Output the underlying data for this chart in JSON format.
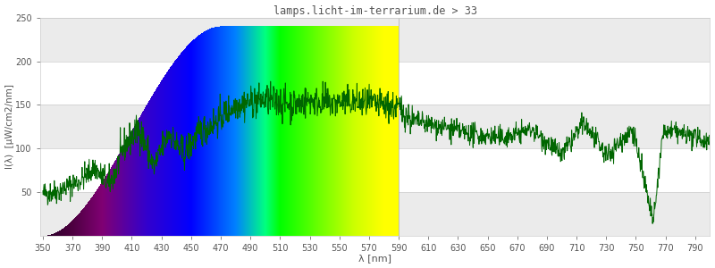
{
  "title": "lamps.licht-im-terrarium.de > 33",
  "xlabel": "λ [nm]",
  "ylabel": "I(λ)  [µW/cm2/nm]",
  "xlim": [
    348,
    800
  ],
  "ylim": [
    0,
    250
  ],
  "yticks": [
    50,
    100,
    150,
    200,
    250
  ],
  "xticks": [
    350,
    370,
    390,
    410,
    430,
    450,
    470,
    490,
    510,
    530,
    550,
    570,
    590,
    610,
    630,
    650,
    670,
    690,
    710,
    730,
    750,
    770,
    790
  ],
  "spectrum_start": 350,
  "spectrum_end": 590,
  "line_color": "#006600",
  "background_color": "#ffffff",
  "grid_band_color": "#ebebeb",
  "title_color": "#555555",
  "axis_color": "#555555",
  "figsize": [
    8.0,
    3.0
  ],
  "dpi": 100
}
